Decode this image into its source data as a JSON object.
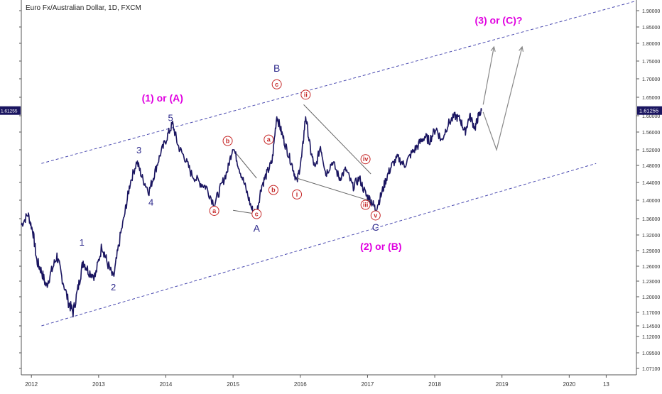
{
  "chart_data": {
    "type": "line",
    "title": "Euro Fx/Australian Dollar, 1D, FXCM",
    "current_price_label": "1.61255",
    "y_ticks": [
      "1.07100",
      "1.09500",
      "1.12000",
      "1.14500",
      "1.17000",
      "1.20000",
      "1.23000",
      "1.26000",
      "1.29000",
      "1.32000",
      "1.36000",
      "1.40000",
      "1.44000",
      "1.48000",
      "1.52000",
      "1.56000",
      "1.60000",
      "1.65000",
      "1.70000",
      "1.75000",
      "1.80000",
      "1.85000",
      "1.90000"
    ],
    "x_ticks": [
      "2012",
      "2013",
      "2014",
      "2015",
      "2016",
      "2017",
      "2018",
      "2019",
      "2020",
      "13"
    ],
    "x_range": [
      2011.85,
      2021.0
    ],
    "series": [
      {
        "values": [
          [
            2011.85,
            1.345
          ],
          [
            2011.95,
            1.37
          ],
          [
            2012.02,
            1.33
          ],
          [
            2012.08,
            1.27
          ],
          [
            2012.15,
            1.25
          ],
          [
            2012.22,
            1.22
          ],
          [
            2012.3,
            1.25
          ],
          [
            2012.38,
            1.28
          ],
          [
            2012.45,
            1.24
          ],
          [
            2012.55,
            1.19
          ],
          [
            2012.62,
            1.17
          ],
          [
            2012.7,
            1.22
          ],
          [
            2012.77,
            1.27
          ],
          [
            2012.85,
            1.25
          ],
          [
            2012.95,
            1.24
          ],
          [
            2013.05,
            1.3
          ],
          [
            2013.12,
            1.27
          ],
          [
            2013.22,
            1.235
          ],
          [
            2013.3,
            1.3
          ],
          [
            2013.4,
            1.38
          ],
          [
            2013.47,
            1.44
          ],
          [
            2013.57,
            1.49
          ],
          [
            2013.65,
            1.45
          ],
          [
            2013.75,
            1.42
          ],
          [
            2013.83,
            1.46
          ],
          [
            2013.92,
            1.51
          ],
          [
            2014.02,
            1.55
          ],
          [
            2014.1,
            1.58
          ],
          [
            2014.18,
            1.53
          ],
          [
            2014.28,
            1.5
          ],
          [
            2014.38,
            1.46
          ],
          [
            2014.5,
            1.44
          ],
          [
            2014.6,
            1.43
          ],
          [
            2014.72,
            1.39
          ],
          [
            2014.82,
            1.43
          ],
          [
            2014.92,
            1.47
          ],
          [
            2015.0,
            1.53
          ],
          [
            2015.08,
            1.48
          ],
          [
            2015.18,
            1.43
          ],
          [
            2015.28,
            1.38
          ],
          [
            2015.35,
            1.37
          ],
          [
            2015.42,
            1.43
          ],
          [
            2015.5,
            1.46
          ],
          [
            2015.58,
            1.49
          ],
          [
            2015.65,
            1.6
          ],
          [
            2015.72,
            1.56
          ],
          [
            2015.8,
            1.52
          ],
          [
            2015.88,
            1.48
          ],
          [
            2015.95,
            1.44
          ],
          [
            2016.02,
            1.5
          ],
          [
            2016.08,
            1.6
          ],
          [
            2016.15,
            1.52
          ],
          [
            2016.22,
            1.47
          ],
          [
            2016.3,
            1.53
          ],
          [
            2016.38,
            1.46
          ],
          [
            2016.48,
            1.49
          ],
          [
            2016.58,
            1.45
          ],
          [
            2016.68,
            1.47
          ],
          [
            2016.78,
            1.43
          ],
          [
            2016.88,
            1.45
          ],
          [
            2016.98,
            1.41
          ],
          [
            2017.05,
            1.4
          ],
          [
            2017.12,
            1.38
          ],
          [
            2017.2,
            1.41
          ],
          [
            2017.28,
            1.45
          ],
          [
            2017.36,
            1.48
          ],
          [
            2017.45,
            1.5
          ],
          [
            2017.55,
            1.48
          ],
          [
            2017.65,
            1.51
          ],
          [
            2017.75,
            1.53
          ],
          [
            2017.85,
            1.55
          ],
          [
            2017.92,
            1.54
          ],
          [
            2018.02,
            1.57
          ],
          [
            2018.1,
            1.54
          ],
          [
            2018.2,
            1.58
          ],
          [
            2018.3,
            1.6
          ],
          [
            2018.38,
            1.59
          ],
          [
            2018.45,
            1.56
          ],
          [
            2018.52,
            1.6
          ],
          [
            2018.6,
            1.57
          ],
          [
            2018.65,
            1.6
          ],
          [
            2018.7,
            1.614
          ]
        ]
      }
    ],
    "channel": {
      "upper": [
        [
          2012.15,
          1.485
        ],
        [
          2021.0,
          1.93
        ]
      ],
      "lower": [
        [
          2012.15,
          1.145
        ],
        [
          2020.4,
          1.485
        ]
      ]
    },
    "triangle_lines": [
      [
        [
          2015.05,
          1.51
        ],
        [
          2015.35,
          1.45
        ]
      ],
      [
        [
          2015.0,
          1.378
        ],
        [
          2015.35,
          1.37
        ]
      ],
      [
        [
          2016.05,
          1.63
        ],
        [
          2017.05,
          1.46
        ]
      ],
      [
        [
          2015.95,
          1.45
        ],
        [
          2017.05,
          1.398
        ]
      ]
    ],
    "projection_arrows": [
      [
        [
          2018.72,
          1.63
        ],
        [
          2018.88,
          1.79
        ]
      ],
      [
        [
          2018.72,
          1.61
        ],
        [
          2018.92,
          1.52
        ],
        [
          2019.3,
          1.79
        ]
      ]
    ],
    "annotations": [
      {
        "text": "1",
        "x": 2012.75,
        "y": 1.305,
        "color": "#2e2a8c",
        "size": 13,
        "style": "plain"
      },
      {
        "text": "2",
        "x": 2013.22,
        "y": 1.218,
        "color": "#2e2a8c",
        "size": 13,
        "style": "plain"
      },
      {
        "text": "3",
        "x": 2013.6,
        "y": 1.518,
        "color": "#2e2a8c",
        "size": 13,
        "style": "plain"
      },
      {
        "text": "4",
        "x": 2013.78,
        "y": 1.395,
        "color": "#2e2a8c",
        "size": 13,
        "style": "plain"
      },
      {
        "text": "5",
        "x": 2014.07,
        "y": 1.594,
        "color": "#2e2a8c",
        "size": 13,
        "style": "plain"
      },
      {
        "text": "(1) or (A)",
        "x": 2013.95,
        "y": 1.646,
        "color": "#e000e0",
        "size": 14,
        "style": "plain"
      },
      {
        "text": "A",
        "x": 2015.35,
        "y": 1.335,
        "color": "#2e2a8c",
        "size": 14,
        "style": "plain"
      },
      {
        "text": "B",
        "x": 2015.65,
        "y": 1.728,
        "color": "#2e2a8c",
        "size": 14,
        "style": "plain"
      },
      {
        "text": "C",
        "x": 2017.12,
        "y": 1.337,
        "color": "#2e2a8c",
        "size": 14,
        "style": "plain"
      },
      {
        "text": "(2) or (B)",
        "x": 2017.2,
        "y": 1.297,
        "color": "#e000e0",
        "size": 14,
        "style": "plain"
      },
      {
        "text": "(3) or (C)?",
        "x": 2018.95,
        "y": 1.868,
        "color": "#e000e0",
        "size": 14,
        "style": "plain"
      },
      {
        "text": "b",
        "x": 2014.92,
        "y": 1.54,
        "color": "#c62828",
        "size": 11,
        "style": "circle"
      },
      {
        "text": "a",
        "x": 2014.72,
        "y": 1.377,
        "color": "#c62828",
        "size": 11,
        "style": "circle"
      },
      {
        "text": "c",
        "x": 2015.35,
        "y": 1.37,
        "color": "#c62828",
        "size": 11,
        "style": "circle"
      },
      {
        "text": "a",
        "x": 2015.53,
        "y": 1.543,
        "color": "#c62828",
        "size": 11,
        "style": "circle"
      },
      {
        "text": "b",
        "x": 2015.6,
        "y": 1.423,
        "color": "#c62828",
        "size": 11,
        "style": "circle"
      },
      {
        "text": "c",
        "x": 2015.65,
        "y": 1.685,
        "color": "#c62828",
        "size": 11,
        "style": "circle"
      },
      {
        "text": "i",
        "x": 2015.95,
        "y": 1.413,
        "color": "#c62828",
        "size": 11,
        "style": "circle"
      },
      {
        "text": "ii",
        "x": 2016.08,
        "y": 1.657,
        "color": "#c62828",
        "size": 11,
        "style": "circle"
      },
      {
        "text": "iii",
        "x": 2016.97,
        "y": 1.39,
        "color": "#c62828",
        "size": 11,
        "style": "circle"
      },
      {
        "text": "iv",
        "x": 2016.97,
        "y": 1.496,
        "color": "#c62828",
        "size": 11,
        "style": "circle"
      },
      {
        "text": "v",
        "x": 2017.12,
        "y": 1.367,
        "color": "#c62828",
        "size": 11,
        "style": "circle"
      }
    ]
  }
}
